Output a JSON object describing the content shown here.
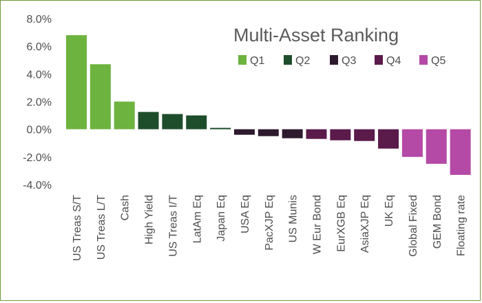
{
  "chart_data": {
    "type": "bar",
    "title": "Multi-Asset Ranking",
    "xlabel": "",
    "ylabel": "",
    "ylim": [
      -4,
      8
    ],
    "yticks": [
      "-4.0%",
      "-2.0%",
      "0.0%",
      "2.0%",
      "4.0%",
      "6.0%",
      "8.0%"
    ],
    "ytick_values": [
      -4,
      -2,
      0,
      2,
      4,
      6,
      8
    ],
    "grid": false,
    "legend_position": "top-right",
    "legend": [
      {
        "name": "Q1",
        "color": "#6db33f"
      },
      {
        "name": "Q2",
        "color": "#1e4d2b"
      },
      {
        "name": "Q3",
        "color": "#2e1a2e"
      },
      {
        "name": "Q4",
        "color": "#5a1a4a"
      },
      {
        "name": "Q5",
        "color": "#b549a6"
      }
    ],
    "categories": [
      "US Treas S/T",
      "US Treas L/T",
      "Cash",
      "High Yield",
      "US Treas I/T",
      "LatAm Eq",
      "Japan Eq",
      "USA Eq",
      "PacXJP Eq",
      "US Munis",
      "W Eur Bond",
      "EurXGB Eq",
      "AsiaXJP Eq",
      "UK Eq",
      "Global Fixed",
      "GEM Bond",
      "Floating rate"
    ],
    "values": [
      6.8,
      4.7,
      2.0,
      1.25,
      1.1,
      1.0,
      0.1,
      -0.4,
      -0.5,
      -0.65,
      -0.7,
      -0.8,
      -0.85,
      -1.4,
      -2.0,
      -2.5,
      -3.3
    ],
    "quintile": [
      0,
      0,
      0,
      1,
      1,
      1,
      1,
      2,
      2,
      2,
      3,
      3,
      3,
      3,
      4,
      4,
      4
    ]
  }
}
